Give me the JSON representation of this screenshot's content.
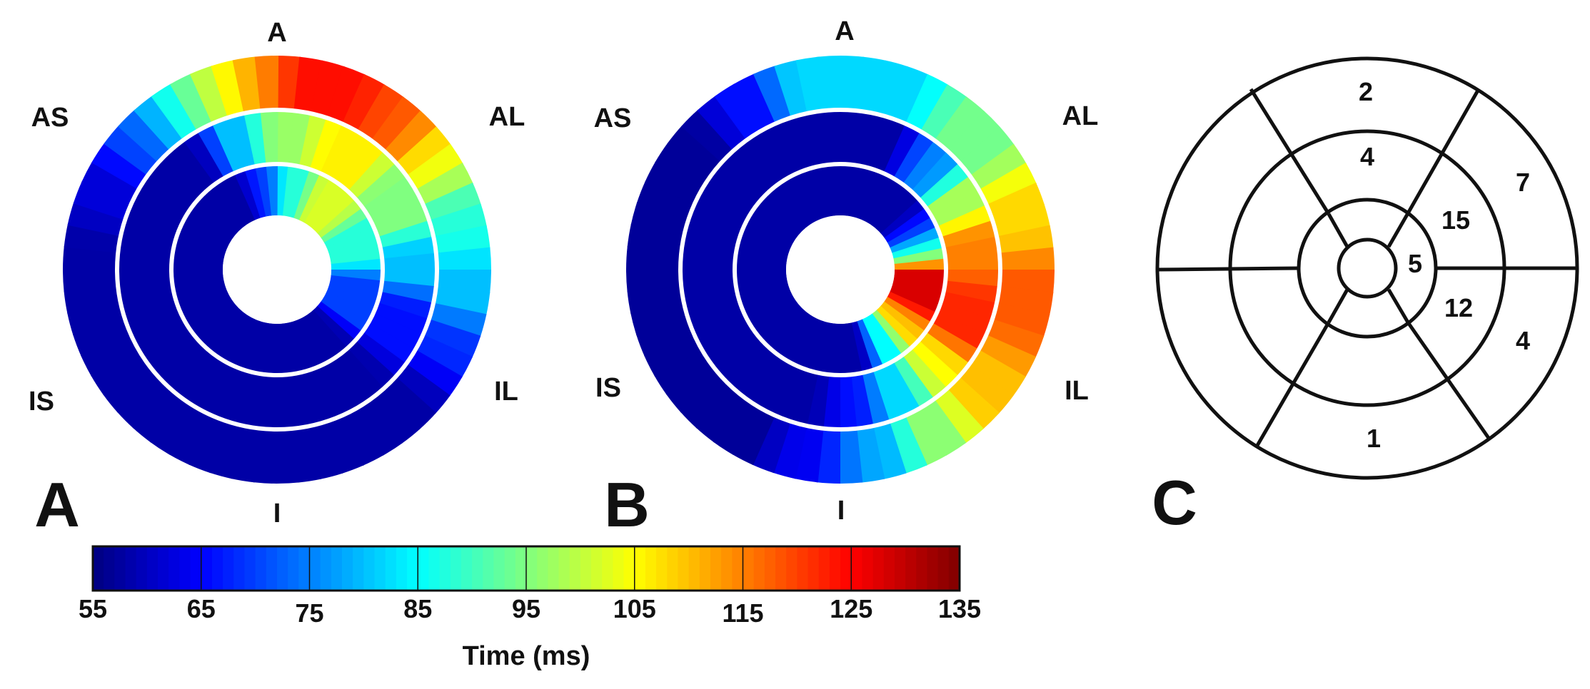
{
  "panels": [
    {
      "letter": "A",
      "orientation": {
        "top": "A",
        "top_left": "AS",
        "top_right": "AL",
        "bottom_left": "IS",
        "bottom_right": "IL",
        "bottom": "I"
      }
    },
    {
      "letter": "B",
      "orientation": {
        "top": "A",
        "top_left": "AS",
        "top_right": "AL",
        "bottom_left": "IS",
        "bottom_right": "IL",
        "bottom": "I"
      }
    },
    {
      "letter": "C",
      "segments": {
        "outer_top": "2",
        "mid_top": "4",
        "outer_right_top": "7",
        "inner_right_top": "15",
        "apex": "5",
        "inner_right_bottom": "12",
        "outer_right_bottom": "4",
        "outer_bottom": "1"
      }
    }
  ],
  "colorbar": {
    "title": "Time (ms)",
    "min": 55,
    "max": 135,
    "ticks": [
      "55",
      "65",
      "75",
      "85",
      "95",
      "105",
      "115",
      "125",
      "135"
    ],
    "colormap": "jet"
  },
  "chart_data": {
    "type": "polar-map",
    "value_unit": "ms",
    "range": [
      55,
      135
    ],
    "panels": [
      {
        "name": "A",
        "rings": [
          {
            "ring": "inner",
            "sectors": [
              {
                "from_deg": -18,
                "to_deg": 0,
                "value": 70
              },
              {
                "from_deg": 0,
                "to_deg": 22,
                "value": 88
              },
              {
                "from_deg": 22,
                "to_deg": 55,
                "value": 102
              },
              {
                "from_deg": 55,
                "to_deg": 90,
                "value": 88
              },
              {
                "from_deg": 90,
                "to_deg": 130,
                "value": 70
              },
              {
                "from_deg": 130,
                "to_deg": 342,
                "value": 58
              }
            ]
          },
          {
            "ring": "mid",
            "sectors": [
              {
                "from_deg": -28,
                "to_deg": -8,
                "value": 80
              },
              {
                "from_deg": -8,
                "to_deg": 15,
                "value": 97
              },
              {
                "from_deg": 15,
                "to_deg": 45,
                "value": 106
              },
              {
                "from_deg": 45,
                "to_deg": 75,
                "value": 95
              },
              {
                "from_deg": 75,
                "to_deg": 100,
                "value": 80
              },
              {
                "from_deg": 100,
                "to_deg": 130,
                "value": 66
              },
              {
                "from_deg": 130,
                "to_deg": 332,
                "value": 58
              }
            ]
          },
          {
            "ring": "outer",
            "sectors": [
              {
                "from_deg": -75,
                "to_deg": -55,
                "value": 62
              },
              {
                "from_deg": -55,
                "to_deg": -40,
                "value": 72
              },
              {
                "from_deg": -40,
                "to_deg": -28,
                "value": 85
              },
              {
                "from_deg": -28,
                "to_deg": -15,
                "value": 100
              },
              {
                "from_deg": -15,
                "to_deg": 0,
                "value": 112
              },
              {
                "from_deg": 0,
                "to_deg": 30,
                "value": 124
              },
              {
                "from_deg": 30,
                "to_deg": 48,
                "value": 118
              },
              {
                "from_deg": 48,
                "to_deg": 65,
                "value": 104
              },
              {
                "from_deg": 65,
                "to_deg": 85,
                "value": 88
              },
              {
                "from_deg": 85,
                "to_deg": 105,
                "value": 80
              },
              {
                "from_deg": 105,
                "to_deg": 125,
                "value": 68
              },
              {
                "from_deg": 125,
                "to_deg": 285,
                "value": 58
              }
            ]
          }
        ]
      },
      {
        "name": "B",
        "rings": [
          {
            "ring": "inner",
            "sectors": [
              {
                "from_deg": 55,
                "to_deg": 70,
                "value": 70
              },
              {
                "from_deg": 70,
                "to_deg": 85,
                "value": 88
              },
              {
                "from_deg": 85,
                "to_deg": 120,
                "value": 128
              },
              {
                "from_deg": 120,
                "to_deg": 140,
                "value": 110
              },
              {
                "from_deg": 140,
                "to_deg": 160,
                "value": 85
              },
              {
                "from_deg": 160,
                "to_deg": 415,
                "value": 58
              }
            ]
          },
          {
            "ring": "mid",
            "sectors": [
              {
                "from_deg": 30,
                "to_deg": 50,
                "value": 75
              },
              {
                "from_deg": 50,
                "to_deg": 70,
                "value": 98
              },
              {
                "from_deg": 70,
                "to_deg": 95,
                "value": 115
              },
              {
                "from_deg": 95,
                "to_deg": 125,
                "value": 122
              },
              {
                "from_deg": 125,
                "to_deg": 145,
                "value": 105
              },
              {
                "from_deg": 145,
                "to_deg": 165,
                "value": 82
              },
              {
                "from_deg": 165,
                "to_deg": 185,
                "value": 66
              },
              {
                "from_deg": 185,
                "to_deg": 390,
                "value": 58
              }
            ]
          },
          {
            "ring": "outer",
            "sectors": [
              {
                "from_deg": -40,
                "to_deg": -20,
                "value": 66
              },
              {
                "from_deg": -20,
                "to_deg": 30,
                "value": 82
              },
              {
                "from_deg": 30,
                "to_deg": 60,
                "value": 94
              },
              {
                "from_deg": 60,
                "to_deg": 85,
                "value": 108
              },
              {
                "from_deg": 85,
                "to_deg": 115,
                "value": 118
              },
              {
                "from_deg": 115,
                "to_deg": 140,
                "value": 110
              },
              {
                "from_deg": 140,
                "to_deg": 160,
                "value": 96
              },
              {
                "from_deg": 160,
                "to_deg": 180,
                "value": 78
              },
              {
                "from_deg": 180,
                "to_deg": 200,
                "value": 64
              },
              {
                "from_deg": 200,
                "to_deg": 320,
                "value": 57
              }
            ]
          }
        ]
      }
    ]
  }
}
